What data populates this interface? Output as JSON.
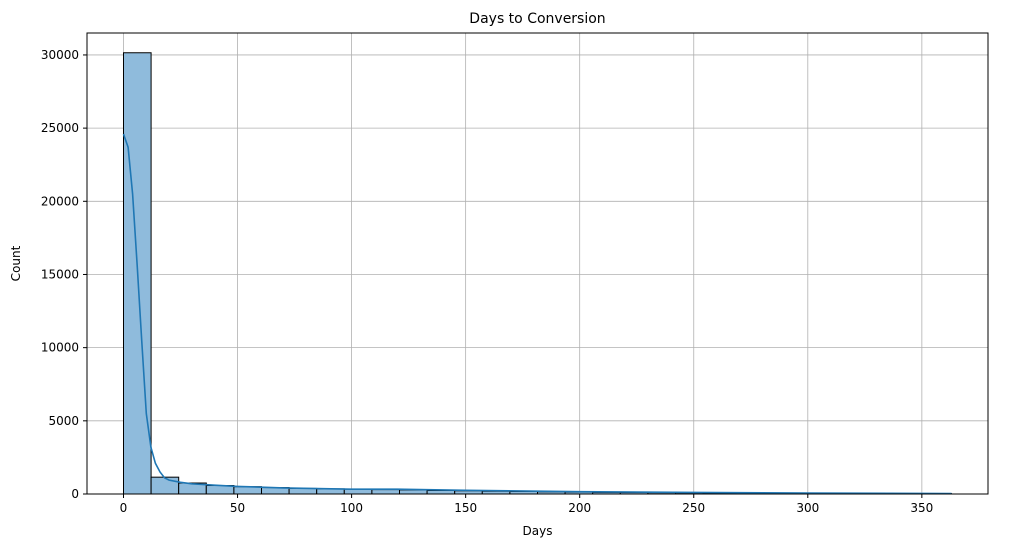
{
  "chart_data": {
    "type": "bar",
    "subtype": "histogram_with_kde",
    "title": "Days to Conversion",
    "xlabel": "Days",
    "ylabel": "Count",
    "xlim": [
      -16,
      379
    ],
    "ylim": [
      0,
      31500
    ],
    "xticks": [
      0,
      50,
      100,
      150,
      200,
      250,
      300,
      350
    ],
    "yticks": [
      0,
      5000,
      10000,
      15000,
      20000,
      25000,
      30000
    ],
    "grid": true,
    "bins": [
      {
        "x0": 0.0,
        "x1": 12.1,
        "count": 30150
      },
      {
        "x0": 12.1,
        "x1": 24.2,
        "count": 1150
      },
      {
        "x0": 24.2,
        "x1": 36.3,
        "count": 750
      },
      {
        "x0": 36.3,
        "x1": 48.4,
        "count": 580
      },
      {
        "x0": 48.4,
        "x1": 60.5,
        "count": 500
      },
      {
        "x0": 60.5,
        "x1": 72.6,
        "count": 440
      },
      {
        "x0": 72.6,
        "x1": 84.7,
        "count": 380
      },
      {
        "x0": 84.7,
        "x1": 96.8,
        "count": 350
      },
      {
        "x0": 96.8,
        "x1": 108.9,
        "count": 330
      },
      {
        "x0": 108.9,
        "x1": 121.0,
        "count": 300
      },
      {
        "x0": 121.0,
        "x1": 133.1,
        "count": 280
      },
      {
        "x0": 133.1,
        "x1": 145.2,
        "count": 240
      },
      {
        "x0": 145.2,
        "x1": 157.3,
        "count": 220
      },
      {
        "x0": 157.3,
        "x1": 169.4,
        "count": 190
      },
      {
        "x0": 169.4,
        "x1": 181.5,
        "count": 170
      },
      {
        "x0": 181.5,
        "x1": 193.6,
        "count": 150
      },
      {
        "x0": 193.6,
        "x1": 205.7,
        "count": 130
      },
      {
        "x0": 205.7,
        "x1": 217.8,
        "count": 110
      },
      {
        "x0": 217.8,
        "x1": 229.9,
        "count": 100
      },
      {
        "x0": 229.9,
        "x1": 242.0,
        "count": 90
      },
      {
        "x0": 242.0,
        "x1": 254.1,
        "count": 80
      },
      {
        "x0": 254.1,
        "x1": 266.2,
        "count": 70
      },
      {
        "x0": 266.2,
        "x1": 278.3,
        "count": 60
      },
      {
        "x0": 278.3,
        "x1": 290.4,
        "count": 50
      },
      {
        "x0": 290.4,
        "x1": 302.5,
        "count": 50
      },
      {
        "x0": 302.5,
        "x1": 314.6,
        "count": 40
      },
      {
        "x0": 314.6,
        "x1": 326.7,
        "count": 40
      },
      {
        "x0": 326.7,
        "x1": 338.8,
        "count": 35
      },
      {
        "x0": 338.8,
        "x1": 350.9,
        "count": 30
      },
      {
        "x0": 350.9,
        "x1": 363.0,
        "count": 25
      }
    ],
    "kde": {
      "x": [
        0,
        2,
        4,
        6,
        8,
        10,
        12,
        14,
        16,
        18,
        20,
        25,
        30,
        40,
        50,
        70,
        100,
        120,
        150,
        200,
        250,
        300,
        350,
        363
      ],
      "y": [
        24600,
        23700,
        20500,
        15600,
        10500,
        5500,
        3200,
        2100,
        1500,
        1100,
        950,
        800,
        700,
        600,
        520,
        420,
        330,
        330,
        250,
        160,
        110,
        70,
        40,
        30
      ]
    },
    "colors": {
      "bar_fill": "#8fbbdc",
      "bar_edge": "#000000",
      "kde_line": "#1f77b4",
      "grid": "#b0b0b0"
    }
  }
}
